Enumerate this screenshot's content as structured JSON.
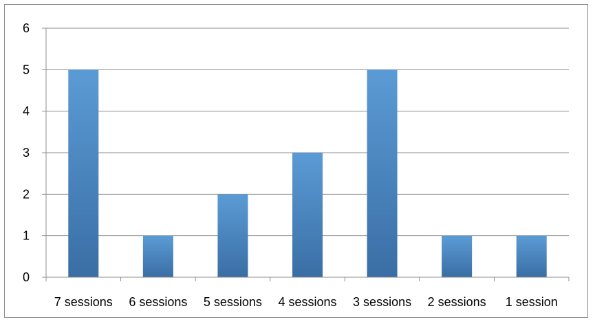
{
  "chart_data": {
    "type": "bar",
    "categories": [
      "7 sessions",
      "6 sessions",
      "5 sessions",
      "4 sessions",
      "3 sessions",
      "2 sessions",
      "1 session"
    ],
    "values": [
      5,
      1,
      2,
      3,
      5,
      1,
      1
    ],
    "title": "",
    "xlabel": "",
    "ylabel": "",
    "ylim": [
      0,
      6
    ],
    "yticks": [
      "0",
      "1",
      "2",
      "3",
      "4",
      "5",
      "6"
    ],
    "grid": true,
    "legend": "none",
    "bar_color_top": "#5b9bd5",
    "bar_color_bottom": "#3a6ea5",
    "grid_color": "#8c8c8c"
  }
}
